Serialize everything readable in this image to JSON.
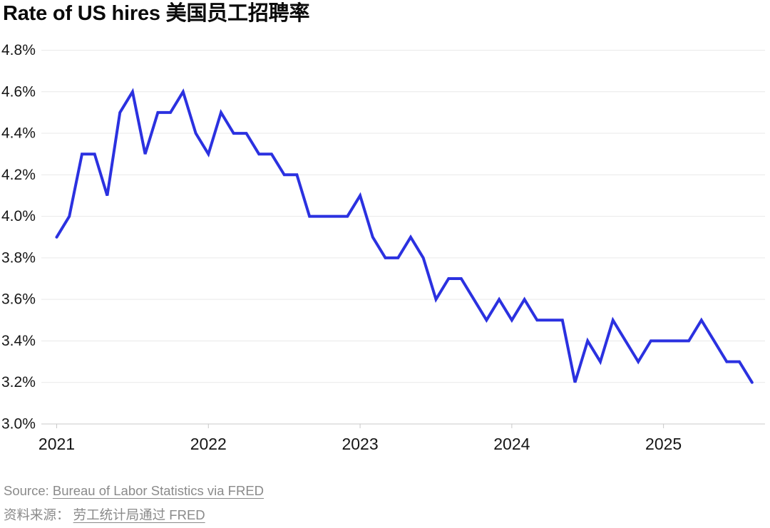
{
  "title": "Rate of US hires 美国员工招聘率",
  "source": {
    "prefix_en": "Source:",
    "link_en": "Bureau of Labor Statistics via FRED",
    "prefix_zh": "资料来源：",
    "link_zh": "劳工统计局通过 FRED"
  },
  "colors": {
    "line": "#2b31e0",
    "grid": "#e9e9e9",
    "axis": "#c8c8c8",
    "tick_text": "#161616",
    "source_text": "#8a8a8a"
  },
  "chart_data": {
    "type": "line",
    "title": "Rate of US hires 美国员工招聘率",
    "xlabel": "",
    "ylabel": "",
    "ylim": [
      3.0,
      4.8
    ],
    "grid": "horizontal",
    "legend_position": "none",
    "y_tick_labels": [
      "4.8%",
      "4.6%",
      "4.4%",
      "4.2%",
      "4.0%",
      "3.8%",
      "3.6%",
      "3.4%",
      "3.2%",
      "3.0%"
    ],
    "x_tick_labels": [
      "2021",
      "2022",
      "2023",
      "2024",
      "2025"
    ],
    "x_tick_month_index": [
      0,
      12,
      24,
      36,
      48
    ],
    "x": [
      "2021-01",
      "2021-02",
      "2021-03",
      "2021-04",
      "2021-05",
      "2021-06",
      "2021-07",
      "2021-08",
      "2021-09",
      "2021-10",
      "2021-11",
      "2021-12",
      "2022-01",
      "2022-02",
      "2022-03",
      "2022-04",
      "2022-05",
      "2022-06",
      "2022-07",
      "2022-08",
      "2022-09",
      "2022-10",
      "2022-11",
      "2022-12",
      "2023-01",
      "2023-02",
      "2023-03",
      "2023-04",
      "2023-05",
      "2023-06",
      "2023-07",
      "2023-08",
      "2023-09",
      "2023-10",
      "2023-11",
      "2023-12",
      "2024-01",
      "2024-02",
      "2024-03",
      "2024-04",
      "2024-05",
      "2024-06",
      "2024-07",
      "2024-08",
      "2024-09",
      "2024-10",
      "2024-11",
      "2024-12",
      "2025-01",
      "2025-02",
      "2025-03",
      "2025-04",
      "2025-05",
      "2025-06",
      "2025-07",
      "2025-08"
    ],
    "series": [
      {
        "name": "Rate of US hires (%)",
        "color": "#2b31e0",
        "values": [
          3.9,
          4.0,
          4.3,
          4.3,
          4.1,
          4.5,
          4.6,
          4.3,
          4.5,
          4.5,
          4.6,
          4.4,
          4.3,
          4.5,
          4.4,
          4.4,
          4.3,
          4.3,
          4.2,
          4.2,
          4.0,
          4.0,
          4.0,
          4.0,
          4.1,
          3.9,
          3.8,
          3.8,
          3.9,
          3.8,
          3.6,
          3.7,
          3.7,
          3.6,
          3.5,
          3.6,
          3.5,
          3.6,
          3.5,
          3.5,
          3.5,
          3.2,
          3.4,
          3.3,
          3.5,
          3.4,
          3.3,
          3.4,
          3.4,
          3.4,
          3.4,
          3.5,
          3.4,
          3.3,
          3.3,
          3.2
        ]
      }
    ]
  }
}
